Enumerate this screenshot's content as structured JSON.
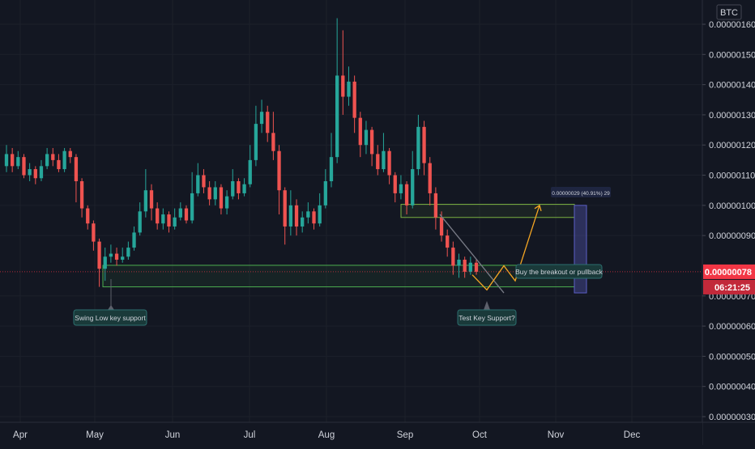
{
  "chart_data": {
    "type": "candlestick",
    "currency": "BTC",
    "y_ticks": [
      1.6e-06,
      1.5e-06,
      1.4e-06,
      1.3e-06,
      1.2e-06,
      1.1e-06,
      1e-06,
      9e-07,
      7e-07,
      6e-07,
      5e-07,
      4e-07,
      3e-07
    ],
    "y_tick_labels": [
      "0.00000160",
      "0.00000150",
      "0.00000140",
      "0.00000130",
      "0.00000120",
      "0.00000110",
      "0.00000100",
      "0.00000090",
      "0.00000070",
      "0.00000060",
      "0.00000050",
      "0.00000040",
      "0.00000030"
    ],
    "ylim": [
      3e-07,
      1.6e-06
    ],
    "x_labels": [
      "Apr",
      "May",
      "Jun",
      "Jul",
      "Aug",
      "Sep",
      "Oct",
      "Nov",
      "Dec"
    ],
    "current_price": {
      "value": "0.00000078",
      "countdown": "06:21:25",
      "color": "#f23645"
    },
    "colors": {
      "up": "#26a69a",
      "down": "#ef5350",
      "background": "#131722",
      "projection": "#f5a623",
      "zone_border": "#4caf50",
      "box_border": "#7cb342",
      "range": "#5b5fc7"
    },
    "candles": [
      {
        "c": "up",
        "o": 1.13e-06,
        "cl": 1.17e-06,
        "h": 1.2e-06,
        "l": 1.11e-06
      },
      {
        "c": "down",
        "o": 1.17e-06,
        "cl": 1.13e-06,
        "h": 1.19e-06,
        "l": 1.11e-06
      },
      {
        "c": "up",
        "o": 1.13e-06,
        "cl": 1.16e-06,
        "h": 1.18e-06,
        "l": 1.12e-06
      },
      {
        "c": "down",
        "o": 1.16e-06,
        "cl": 1.1e-06,
        "h": 1.17e-06,
        "l": 1.09e-06
      },
      {
        "c": "up",
        "o": 1.1e-06,
        "cl": 1.12e-06,
        "h": 1.14e-06,
        "l": 1.08e-06
      },
      {
        "c": "down",
        "o": 1.12e-06,
        "cl": 1.09e-06,
        "h": 1.13e-06,
        "l": 1.07e-06
      },
      {
        "c": "up",
        "o": 1.09e-06,
        "cl": 1.13e-06,
        "h": 1.15e-06,
        "l": 1.08e-06
      },
      {
        "c": "up",
        "o": 1.13e-06,
        "cl": 1.17e-06,
        "h": 1.19e-06,
        "l": 1.12e-06
      },
      {
        "c": "down",
        "o": 1.17e-06,
        "cl": 1.15e-06,
        "h": 1.19e-06,
        "l": 1.13e-06
      },
      {
        "c": "down",
        "o": 1.15e-06,
        "cl": 1.12e-06,
        "h": 1.17e-06,
        "l": 1.11e-06
      },
      {
        "c": "up",
        "o": 1.12e-06,
        "cl": 1.18e-06,
        "h": 1.19e-06,
        "l": 1.11e-06
      },
      {
        "c": "down",
        "o": 1.18e-06,
        "cl": 1.16e-06,
        "h": 1.19e-06,
        "l": 1.14e-06
      },
      {
        "c": "down",
        "o": 1.16e-06,
        "cl": 1.08e-06,
        "h": 1.17e-06,
        "l": 1.01e-06
      },
      {
        "c": "down",
        "o": 1.08e-06,
        "cl": 9.9e-07,
        "h": 1.09e-06,
        "l": 9.6e-07
      },
      {
        "c": "down",
        "o": 9.9e-07,
        "cl": 9.4e-07,
        "h": 1e-06,
        "l": 9.2e-07
      },
      {
        "c": "down",
        "o": 9.4e-07,
        "cl": 8.8e-07,
        "h": 9.5e-07,
        "l": 8.5e-07
      },
      {
        "c": "down",
        "o": 8.8e-07,
        "cl": 7.9e-07,
        "h": 8.9e-07,
        "l": 7.3e-07
      },
      {
        "c": "up",
        "o": 7.9e-07,
        "cl": 8.3e-07,
        "h": 8.6e-07,
        "l": 7.5e-07
      },
      {
        "c": "up",
        "o": 8.3e-07,
        "cl": 8.4e-07,
        "h": 8.7e-07,
        "l": 8.1e-07
      },
      {
        "c": "down",
        "o": 8.4e-07,
        "cl": 8.2e-07,
        "h": 8.6e-07,
        "l": 8e-07
      },
      {
        "c": "up",
        "o": 8.2e-07,
        "cl": 8.3e-07,
        "h": 8.6e-07,
        "l": 8.1e-07
      },
      {
        "c": "up",
        "o": 8.3e-07,
        "cl": 8.6e-07,
        "h": 8.8e-07,
        "l": 8.2e-07
      },
      {
        "c": "up",
        "o": 8.6e-07,
        "cl": 9.1e-07,
        "h": 9.3e-07,
        "l": 8.5e-07
      },
      {
        "c": "up",
        "o": 9.1e-07,
        "cl": 9.8e-07,
        "h": 1.01e-06,
        "l": 9e-07
      },
      {
        "c": "up",
        "o": 9.8e-07,
        "cl": 1.05e-06,
        "h": 1.12e-06,
        "l": 9.6e-07
      },
      {
        "c": "down",
        "o": 1.05e-06,
        "cl": 9.9e-07,
        "h": 1.07e-06,
        "l": 9.5e-07
      },
      {
        "c": "down",
        "o": 9.9e-07,
        "cl": 9.4e-07,
        "h": 1.01e-06,
        "l": 9.2e-07
      },
      {
        "c": "up",
        "o": 9.4e-07,
        "cl": 9.7e-07,
        "h": 9.9e-07,
        "l": 9.2e-07
      },
      {
        "c": "down",
        "o": 9.7e-07,
        "cl": 9.3e-07,
        "h": 9.8e-07,
        "l": 9.1e-07
      },
      {
        "c": "up",
        "o": 9.3e-07,
        "cl": 9.6e-07,
        "h": 9.9e-07,
        "l": 9.2e-07
      },
      {
        "c": "up",
        "o": 9.6e-07,
        "cl": 9.9e-07,
        "h": 1.01e-06,
        "l": 9.5e-07
      },
      {
        "c": "down",
        "o": 9.9e-07,
        "cl": 9.5e-07,
        "h": 1e-06,
        "l": 9.4e-07
      },
      {
        "c": "up",
        "o": 9.5e-07,
        "cl": 1.04e-06,
        "h": 1.11e-06,
        "l": 9.4e-07
      },
      {
        "c": "up",
        "o": 1.04e-06,
        "cl": 1.1e-06,
        "h": 1.14e-06,
        "l": 1.03e-06
      },
      {
        "c": "down",
        "o": 1.1e-06,
        "cl": 1.06e-06,
        "h": 1.12e-06,
        "l": 1.04e-06
      },
      {
        "c": "down",
        "o": 1.06e-06,
        "cl": 1.02e-06,
        "h": 1.08e-06,
        "l": 1e-06
      },
      {
        "c": "up",
        "o": 1.02e-06,
        "cl": 1.06e-06,
        "h": 1.08e-06,
        "l": 1e-06
      },
      {
        "c": "down",
        "o": 1.06e-06,
        "cl": 9.9e-07,
        "h": 1.07e-06,
        "l": 9.7e-07
      },
      {
        "c": "up",
        "o": 9.9e-07,
        "cl": 1.03e-06,
        "h": 1.05e-06,
        "l": 9.7e-07
      },
      {
        "c": "up",
        "o": 1.03e-06,
        "cl": 1.08e-06,
        "h": 1.12e-06,
        "l": 1.02e-06
      },
      {
        "c": "down",
        "o": 1.08e-06,
        "cl": 1.04e-06,
        "h": 1.09e-06,
        "l": 1.02e-06
      },
      {
        "c": "up",
        "o": 1.04e-06,
        "cl": 1.07e-06,
        "h": 1.09e-06,
        "l": 1.03e-06
      },
      {
        "c": "up",
        "o": 1.07e-06,
        "cl": 1.15e-06,
        "h": 1.2e-06,
        "l": 1.06e-06
      },
      {
        "c": "up",
        "o": 1.15e-06,
        "cl": 1.27e-06,
        "h": 1.33e-06,
        "l": 1.13e-06
      },
      {
        "c": "up",
        "o": 1.27e-06,
        "cl": 1.31e-06,
        "h": 1.35e-06,
        "l": 1.24e-06
      },
      {
        "c": "down",
        "o": 1.31e-06,
        "cl": 1.24e-06,
        "h": 1.33e-06,
        "l": 1.21e-06
      },
      {
        "c": "down",
        "o": 1.24e-06,
        "cl": 1.18e-06,
        "h": 1.31e-06,
        "l": 1.15e-06
      },
      {
        "c": "down",
        "o": 1.18e-06,
        "cl": 1.05e-06,
        "h": 1.2e-06,
        "l": 9.7e-07
      },
      {
        "c": "down",
        "o": 1.05e-06,
        "cl": 9.3e-07,
        "h": 1.06e-06,
        "l": 8.7e-07
      },
      {
        "c": "up",
        "o": 9.3e-07,
        "cl": 1e-06,
        "h": 1.05e-06,
        "l": 9e-07
      },
      {
        "c": "down",
        "o": 1e-06,
        "cl": 9.3e-07,
        "h": 1.02e-06,
        "l": 9e-07
      },
      {
        "c": "up",
        "o": 9.3e-07,
        "cl": 9.6e-07,
        "h": 9.8e-07,
        "l": 9.1e-07
      },
      {
        "c": "up",
        "o": 9.6e-07,
        "cl": 9.8e-07,
        "h": 1.01e-06,
        "l": 9.4e-07
      },
      {
        "c": "down",
        "o": 9.8e-07,
        "cl": 9.4e-07,
        "h": 9.9e-07,
        "l": 9.2e-07
      },
      {
        "c": "up",
        "o": 9.4e-07,
        "cl": 1e-06,
        "h": 1.04e-06,
        "l": 9.3e-07
      },
      {
        "c": "up",
        "o": 1e-06,
        "cl": 1.08e-06,
        "h": 1.12e-06,
        "l": 9.9e-07
      },
      {
        "c": "up",
        "o": 1.08e-06,
        "cl": 1.16e-06,
        "h": 1.24e-06,
        "l": 1.06e-06
      },
      {
        "c": "up",
        "o": 1.16e-06,
        "cl": 1.43e-06,
        "h": 1.62e-06,
        "l": 1.14e-06
      },
      {
        "c": "down",
        "o": 1.43e-06,
        "cl": 1.36e-06,
        "h": 1.58e-06,
        "l": 1.3e-06
      },
      {
        "c": "up",
        "o": 1.36e-06,
        "cl": 1.41e-06,
        "h": 1.46e-06,
        "l": 1.33e-06
      },
      {
        "c": "down",
        "o": 1.41e-06,
        "cl": 1.29e-06,
        "h": 1.43e-06,
        "l": 1.24e-06
      },
      {
        "c": "down",
        "o": 1.29e-06,
        "cl": 1.2e-06,
        "h": 1.31e-06,
        "l": 1.16e-06
      },
      {
        "c": "up",
        "o": 1.2e-06,
        "cl": 1.25e-06,
        "h": 1.28e-06,
        "l": 1.17e-06
      },
      {
        "c": "down",
        "o": 1.25e-06,
        "cl": 1.17e-06,
        "h": 1.26e-06,
        "l": 1.13e-06
      },
      {
        "c": "down",
        "o": 1.17e-06,
        "cl": 1.12e-06,
        "h": 1.2e-06,
        "l": 1.1e-06
      },
      {
        "c": "up",
        "o": 1.12e-06,
        "cl": 1.18e-06,
        "h": 1.24e-06,
        "l": 1.11e-06
      },
      {
        "c": "down",
        "o": 1.18e-06,
        "cl": 1.1e-06,
        "h": 1.19e-06,
        "l": 1.07e-06
      },
      {
        "c": "down",
        "o": 1.1e-06,
        "cl": 1.04e-06,
        "h": 1.11e-06,
        "l": 1.01e-06
      },
      {
        "c": "up",
        "o": 1.04e-06,
        "cl": 1.07e-06,
        "h": 1.1e-06,
        "l": 1.02e-06
      },
      {
        "c": "down",
        "o": 1.07e-06,
        "cl": 1e-06,
        "h": 1.08e-06,
        "l": 9.7e-07
      },
      {
        "c": "up",
        "o": 1e-06,
        "cl": 1.12e-06,
        "h": 1.18e-06,
        "l": 9.9e-07
      },
      {
        "c": "up",
        "o": 1.12e-06,
        "cl": 1.26e-06,
        "h": 1.3e-06,
        "l": 1.1e-06
      },
      {
        "c": "down",
        "o": 1.26e-06,
        "cl": 1.14e-06,
        "h": 1.28e-06,
        "l": 1.1e-06
      },
      {
        "c": "down",
        "o": 1.14e-06,
        "cl": 1.04e-06,
        "h": 1.16e-06,
        "l": 1e-06
      },
      {
        "c": "down",
        "o": 1.04e-06,
        "cl": 9.6e-07,
        "h": 1.06e-06,
        "l": 9.2e-07
      },
      {
        "c": "down",
        "o": 9.6e-07,
        "cl": 9e-07,
        "h": 9.8e-07,
        "l": 8.8e-07
      },
      {
        "c": "down",
        "o": 9e-07,
        "cl": 8.6e-07,
        "h": 9.2e-07,
        "l": 8.3e-07
      },
      {
        "c": "down",
        "o": 8.6e-07,
        "cl": 8e-07,
        "h": 8.8e-07,
        "l": 7.7e-07
      },
      {
        "c": "up",
        "o": 8e-07,
        "cl": 8.2e-07,
        "h": 8.4e-07,
        "l": 7.6e-07
      },
      {
        "c": "down",
        "o": 8.2e-07,
        "cl": 7.8e-07,
        "h": 8.3e-07,
        "l": 7.6e-07
      },
      {
        "c": "up",
        "o": 7.8e-07,
        "cl": 8.1e-07,
        "h": 8.3e-07,
        "l": 7.7e-07
      },
      {
        "c": "down",
        "o": 8.1e-07,
        "cl": 7.8e-07,
        "h": 8.2e-07,
        "l": 7.7e-07
      }
    ],
    "zones": {
      "support": {
        "top": 7.8e-07,
        "bottom": 7.3e-07
      },
      "resistance": {
        "top": 9.9e-07,
        "bottom": 9.6e-07
      }
    },
    "measure": {
      "label": "0.00000029 (40.91%) 29",
      "from": 7.1e-07,
      "to": 1e-06
    },
    "annotations": {
      "swing_low": "Swing Low key support",
      "test_support": "Test Key Support?",
      "breakout": "Buy the breakout or pullback"
    }
  }
}
